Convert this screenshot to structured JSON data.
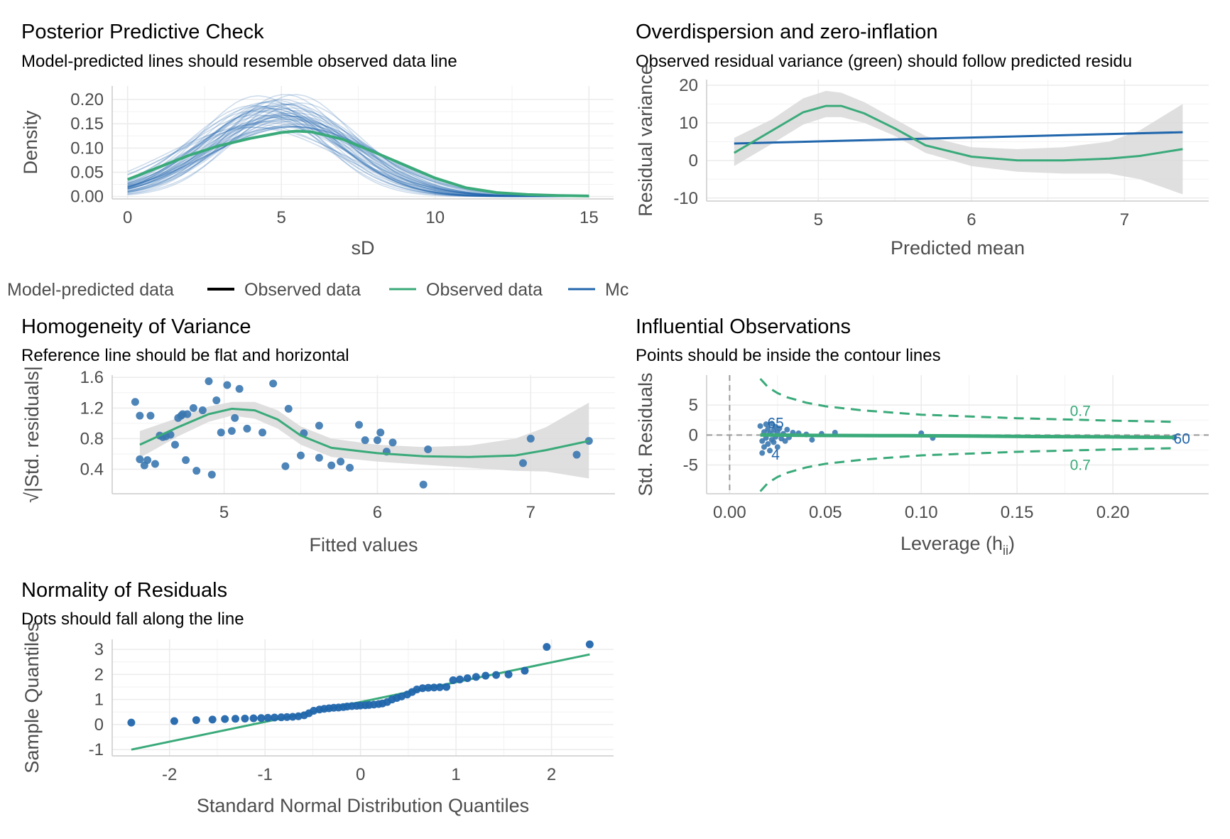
{
  "colors": {
    "green": "#3aaa7a",
    "blue": "#2166ac",
    "point": "#3b78b0",
    "ribbon": "#d9d9d9",
    "grid": "#ebebeb",
    "axis_text": "#4d4d4d"
  },
  "legend": {
    "items": [
      {
        "label": "Model-predicted data",
        "color": "",
        "key": false
      },
      {
        "label": "Observed data",
        "color": "#000000",
        "key": true
      },
      {
        "label": "Observed data",
        "color": "#3aaa7a",
        "key": true
      },
      {
        "label": "Mc",
        "color": "#2166ac",
        "key": true
      }
    ]
  },
  "chart_data": [
    {
      "id": "ppc",
      "type": "line",
      "title": "Posterior Predictive Check",
      "subtitle": "Model-predicted lines should resemble observed data line",
      "xlabel": "sD",
      "ylabel": "Density",
      "xlim": [
        -0.5,
        15.8
      ],
      "ylim": [
        -0.005,
        0.228
      ],
      "xticks": [
        0,
        5,
        10,
        15
      ],
      "xtick_labels": [
        "0",
        "5",
        "10",
        "15"
      ],
      "yticks": [
        0.0,
        0.05,
        0.1,
        0.15,
        0.2
      ],
      "ytick_labels": [
        "0.00",
        "0.05",
        "0.10",
        "0.15",
        "0.20"
      ],
      "observed": {
        "x": [
          0,
          1,
          2,
          3,
          4,
          5,
          5.5,
          6,
          7,
          8,
          9,
          10,
          11,
          12,
          13,
          14,
          15
        ],
        "y": [
          0.035,
          0.06,
          0.085,
          0.105,
          0.12,
          0.132,
          0.135,
          0.133,
          0.118,
          0.092,
          0.065,
          0.038,
          0.018,
          0.008,
          0.004,
          0.002,
          0.001
        ]
      },
      "simulated_count": 50,
      "simulated_mean": 4.8,
      "simulated_sd": 2.3
    },
    {
      "id": "overdisp",
      "type": "line",
      "title": "Overdispersion and zero-inflation",
      "subtitle": "Observed residual variance (green) should follow predicted residu",
      "xlabel": "Predicted mean",
      "ylabel": "Residual variance",
      "xlim": [
        4.27,
        7.55
      ],
      "ylim": [
        -10.8,
        21.5
      ],
      "xticks": [
        5,
        6,
        7
      ],
      "xtick_labels": [
        "5",
        "6",
        "7"
      ],
      "yticks": [
        -10,
        0,
        10,
        20
      ],
      "ytick_labels": [
        "-10",
        "0",
        "10",
        "20"
      ],
      "observed": {
        "x": [
          4.45,
          4.7,
          4.9,
          5.05,
          5.15,
          5.3,
          5.5,
          5.7,
          6.0,
          6.3,
          6.6,
          6.9,
          7.1,
          7.38
        ],
        "y": [
          2,
          8,
          12.8,
          14.5,
          14.5,
          12.5,
          8.5,
          4,
          1,
          0,
          0,
          0.5,
          1.2,
          3
        ]
      },
      "ribbon": {
        "x": [
          4.45,
          4.7,
          4.9,
          5.05,
          5.15,
          5.3,
          5.5,
          5.7,
          6.0,
          6.3,
          6.6,
          6.9,
          7.1,
          7.38
        ],
        "lower": [
          -1.5,
          4.5,
          9.5,
          11.5,
          11.5,
          10,
          6.5,
          2,
          -1.5,
          -3,
          -3.5,
          -3.5,
          -5,
          -9
        ],
        "upper": [
          6,
          11,
          16.5,
          18.5,
          18,
          15.5,
          11,
          6.5,
          3.5,
          3,
          3.5,
          5,
          8,
          15
        ]
      },
      "predicted": {
        "x": [
          4.45,
          7.38
        ],
        "y": [
          4.5,
          7.5
        ]
      }
    },
    {
      "id": "homog",
      "type": "scatter",
      "title": "Homogeneity of Variance",
      "subtitle": "Reference line should be flat and horizontal",
      "xlabel": "Fitted values",
      "ylabel": "√|Std. residuals|",
      "xlim": [
        4.27,
        7.55
      ],
      "ylim": [
        0.08,
        1.63
      ],
      "xticks": [
        5,
        6,
        7
      ],
      "xtick_labels": [
        "5",
        "6",
        "7"
      ],
      "yticks": [
        0.4,
        0.8,
        1.2,
        1.6
      ],
      "ytick_labels": [
        "0.4",
        "0.8",
        "1.2",
        "1.6"
      ],
      "points": [
        [
          4.42,
          1.28
        ],
        [
          4.45,
          1.1
        ],
        [
          4.52,
          1.1
        ],
        [
          4.58,
          0.84
        ],
        [
          4.6,
          0.82
        ],
        [
          4.62,
          0.83
        ],
        [
          4.65,
          0.85
        ],
        [
          4.7,
          1.07
        ],
        [
          4.72,
          1.1
        ],
        [
          4.73,
          1.12
        ],
        [
          4.45,
          0.53
        ],
        [
          4.48,
          0.45
        ],
        [
          4.5,
          0.52
        ],
        [
          4.55,
          0.47
        ],
        [
          4.68,
          0.72
        ],
        [
          4.75,
          0.52
        ],
        [
          4.82,
          0.38
        ],
        [
          4.9,
          1.55
        ],
        [
          5.02,
          1.5
        ],
        [
          4.92,
          0.33
        ],
        [
          5.1,
          1.45
        ],
        [
          4.76,
          1.12
        ],
        [
          4.86,
          1.17
        ],
        [
          4.98,
          0.88
        ],
        [
          5.05,
          0.9
        ],
        [
          5.15,
          0.93
        ],
        [
          5.25,
          0.88
        ],
        [
          5.32,
          1.52
        ],
        [
          5.42,
          1.19
        ],
        [
          5.52,
          0.87
        ],
        [
          5.5,
          0.58
        ],
        [
          5.62,
          0.97
        ],
        [
          5.7,
          0.45
        ],
        [
          5.76,
          0.5
        ],
        [
          5.82,
          0.42
        ],
        [
          5.88,
          0.98
        ],
        [
          5.92,
          0.78
        ],
        [
          6.0,
          0.78
        ],
        [
          6.02,
          0.88
        ],
        [
          6.1,
          0.75
        ],
        [
          6.06,
          0.63
        ],
        [
          6.3,
          0.2
        ],
        [
          6.33,
          0.66
        ],
        [
          6.95,
          0.48
        ],
        [
          7.0,
          0.8
        ],
        [
          7.3,
          0.59
        ],
        [
          7.38,
          0.77
        ],
        [
          4.8,
          1.2
        ],
        [
          4.95,
          1.3
        ],
        [
          5.07,
          1.07
        ],
        [
          5.4,
          0.44
        ],
        [
          5.62,
          0.55
        ]
      ],
      "smooth": {
        "x": [
          4.45,
          4.7,
          4.9,
          5.05,
          5.2,
          5.35,
          5.5,
          5.7,
          6.0,
          6.3,
          6.6,
          6.9,
          7.1,
          7.38
        ],
        "y": [
          0.72,
          0.95,
          1.12,
          1.19,
          1.17,
          1.05,
          0.84,
          0.68,
          0.61,
          0.57,
          0.56,
          0.58,
          0.65,
          0.77
        ]
      },
      "ribbon": {
        "x": [
          4.45,
          4.7,
          4.9,
          5.05,
          5.2,
          5.35,
          5.5,
          5.7,
          6.0,
          6.3,
          6.6,
          6.9,
          7.1,
          7.38
        ],
        "lower": [
          0.55,
          0.83,
          1.02,
          1.1,
          1.06,
          0.93,
          0.72,
          0.56,
          0.5,
          0.46,
          0.42,
          0.38,
          0.37,
          0.28
        ],
        "upper": [
          0.9,
          1.07,
          1.22,
          1.28,
          1.28,
          1.17,
          0.96,
          0.8,
          0.72,
          0.69,
          0.71,
          0.8,
          0.95,
          1.27
        ]
      }
    },
    {
      "id": "influence",
      "type": "scatter",
      "title": "Influential Observations",
      "subtitle": "Points should be inside the contour lines",
      "xlabel": "Leverage (h",
      "xlabel_sub": "ii",
      "xlabel_end": ")",
      "ylabel": "Std. Residuals",
      "xlim": [
        -0.012,
        0.25
      ],
      "ylim": [
        -9.8,
        10
      ],
      "xticks": [
        0.0,
        0.05,
        0.1,
        0.15,
        0.2
      ],
      "xtick_labels": [
        "0.00",
        "0.05",
        "0.10",
        "0.15",
        "0.20"
      ],
      "yticks": [
        -5,
        0,
        5
      ],
      "ytick_labels": [
        "-5",
        "0",
        "5"
      ],
      "contour_label": "0.7",
      "contour_x": [
        0.016,
        0.02,
        0.025,
        0.03,
        0.04,
        0.05,
        0.07,
        0.1,
        0.15,
        0.2,
        0.232
      ],
      "contour_y": [
        9.4,
        8.0,
        7.0,
        6.3,
        5.4,
        4.8,
        4.1,
        3.4,
        2.8,
        2.4,
        2.2
      ],
      "points": [
        [
          0.016,
          1.5
        ],
        [
          0.017,
          -1.0
        ],
        [
          0.017,
          -3.0
        ],
        [
          0.018,
          0.5
        ],
        [
          0.018,
          -2.0
        ],
        [
          0.019,
          1.8
        ],
        [
          0.019,
          -0.5
        ],
        [
          0.02,
          1.0
        ],
        [
          0.02,
          -1.5
        ],
        [
          0.021,
          0.3
        ],
        [
          0.021,
          -2.6
        ],
        [
          0.022,
          1.9
        ],
        [
          0.022,
          -0.8
        ],
        [
          0.023,
          0.8
        ],
        [
          0.023,
          -1.2
        ],
        [
          0.024,
          1.4
        ],
        [
          0.024,
          -0.3
        ],
        [
          0.025,
          0.5
        ],
        [
          0.025,
          -2.0
        ],
        [
          0.026,
          1.1
        ],
        [
          0.027,
          -0.6
        ],
        [
          0.028,
          0.2
        ],
        [
          0.029,
          -1.0
        ],
        [
          0.03,
          0.9
        ],
        [
          0.031,
          -0.4
        ],
        [
          0.033,
          0.4
        ],
        [
          0.036,
          0.3
        ],
        [
          0.04,
          0.1
        ],
        [
          0.043,
          -0.8
        ],
        [
          0.048,
          0.2
        ],
        [
          0.055,
          0.4
        ],
        [
          0.1,
          0.3
        ],
        [
          0.106,
          -0.5
        ],
        [
          0.232,
          -0.4
        ]
      ],
      "point_labels": [
        {
          "x": 0.024,
          "y": 2.0,
          "text": "65"
        },
        {
          "x": 0.024,
          "y": -3.3,
          "text": "4"
        },
        {
          "x": 0.236,
          "y": -0.6,
          "text": "60"
        }
      ],
      "smooth": {
        "x": [
          0.016,
          0.04,
          0.08,
          0.12,
          0.16,
          0.2,
          0.232
        ],
        "y": [
          0.0,
          -0.05,
          -0.1,
          -0.15,
          -0.25,
          -0.32,
          -0.4
        ]
      }
    },
    {
      "id": "qq",
      "type": "scatter",
      "title": "Normality of Residuals",
      "subtitle": "Dots should fall along the line",
      "xlabel": "Standard Normal Distribution Quantiles",
      "ylabel": "Sample Quantiles",
      "xlim": [
        -2.6,
        2.65
      ],
      "ylim": [
        -1.25,
        3.4
      ],
      "xticks": [
        -2,
        -1,
        0,
        1,
        2
      ],
      "xtick_labels": [
        "-2",
        "-1",
        "0",
        "1",
        "2"
      ],
      "yticks": [
        -1,
        0,
        1,
        2,
        3
      ],
      "ytick_labels": [
        "-1",
        "0",
        "1",
        "2",
        "3"
      ],
      "points": [
        [
          -2.4,
          0.08
        ],
        [
          -1.95,
          0.14
        ],
        [
          -1.72,
          0.18
        ],
        [
          -1.55,
          0.2
        ],
        [
          -1.42,
          0.22
        ],
        [
          -1.31,
          0.23
        ],
        [
          -1.21,
          0.24
        ],
        [
          -1.12,
          0.25
        ],
        [
          -1.04,
          0.26
        ],
        [
          -0.97,
          0.27
        ],
        [
          -0.9,
          0.28
        ],
        [
          -0.83,
          0.29
        ],
        [
          -0.77,
          0.3
        ],
        [
          -0.71,
          0.31
        ],
        [
          -0.65,
          0.33
        ],
        [
          -0.59,
          0.37
        ],
        [
          -0.54,
          0.45
        ],
        [
          -0.49,
          0.55
        ],
        [
          -0.43,
          0.6
        ],
        [
          -0.38,
          0.63
        ],
        [
          -0.33,
          0.65
        ],
        [
          -0.28,
          0.67
        ],
        [
          -0.23,
          0.68
        ],
        [
          -0.18,
          0.7
        ],
        [
          -0.14,
          0.72
        ],
        [
          -0.09,
          0.74
        ],
        [
          -0.04,
          0.75
        ],
        [
          0.0,
          0.76
        ],
        [
          0.05,
          0.77
        ],
        [
          0.09,
          0.78
        ],
        [
          0.14,
          0.8
        ],
        [
          0.19,
          0.82
        ],
        [
          0.23,
          0.84
        ],
        [
          0.28,
          0.9
        ],
        [
          0.33,
          1.0
        ],
        [
          0.38,
          1.06
        ],
        [
          0.43,
          1.12
        ],
        [
          0.49,
          1.2
        ],
        [
          0.54,
          1.3
        ],
        [
          0.59,
          1.4
        ],
        [
          0.65,
          1.45
        ],
        [
          0.71,
          1.47
        ],
        [
          0.77,
          1.48
        ],
        [
          0.83,
          1.49
        ],
        [
          0.9,
          1.5
        ],
        [
          0.97,
          1.77
        ],
        [
          1.04,
          1.8
        ],
        [
          1.12,
          1.85
        ],
        [
          1.21,
          1.9
        ],
        [
          1.31,
          1.95
        ],
        [
          1.42,
          1.98
        ],
        [
          1.55,
          2.0
        ],
        [
          1.72,
          2.15
        ],
        [
          1.95,
          3.1
        ],
        [
          2.4,
          3.2
        ]
      ],
      "ref_line": {
        "x": [
          -2.4,
          2.4
        ],
        "y": [
          -1.0,
          2.8
        ]
      }
    }
  ]
}
